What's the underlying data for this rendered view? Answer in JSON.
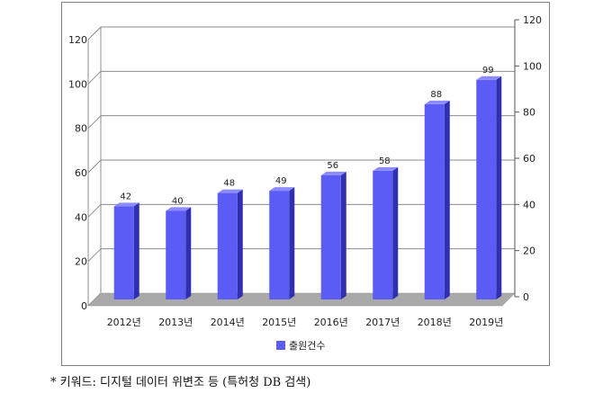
{
  "chart_data": {
    "type": "bar",
    "categories": [
      "2012년",
      "2013년",
      "2014년",
      "2015년",
      "2016년",
      "2017년",
      "2018년",
      "2019년"
    ],
    "series": [
      {
        "name": "출원건수",
        "values": [
          42,
          40,
          48,
          49,
          56,
          58,
          88,
          99
        ]
      }
    ],
    "ylim": [
      0,
      120
    ],
    "y_ticks": [
      "0",
      "20",
      "40",
      "60",
      "80",
      "100",
      "120"
    ],
    "y2_ticks": [
      "0",
      "20",
      "40",
      "60",
      "80",
      "100",
      "120"
    ],
    "grid": true,
    "style": "3d",
    "legend_position": "bottom",
    "colors": {
      "bar_front": "#5b5bf5",
      "bar_side": "#2f2fb0",
      "bar_top": "#8c8cff",
      "floor": "#a9a9a9"
    }
  },
  "footnote": "* 키워드: 디지털 데이터 위변조 등 (특허청 DB 검색)"
}
